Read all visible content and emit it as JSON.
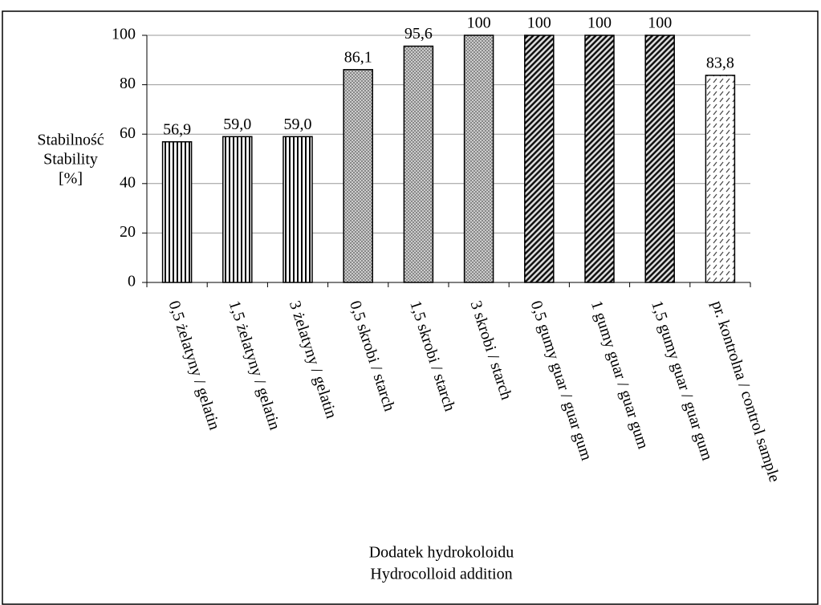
{
  "chart_data": {
    "type": "bar",
    "categories": [
      "0,5 żelatyny / gelatin",
      "1,5 żelatyny / gelatin",
      "3 żelatyny / gelatin",
      "0,5 skrobi / starch",
      "1,5 skrobi / starch",
      "3 skrobi / starch",
      "0,5 gumy guar / guar gum",
      "1 gumy guar / guar gum",
      "1,5 gumy guar / guar gum",
      "pr. kontrolna / control sample"
    ],
    "values": [
      56.9,
      59.0,
      59.0,
      86.1,
      95.6,
      100,
      100,
      100,
      100,
      83.8
    ],
    "value_labels": [
      "56,9",
      "59,0",
      "59,0",
      "86,1",
      "95,6",
      "100",
      "100",
      "100",
      "100",
      "83,8"
    ],
    "patterns": [
      "vertical-stripes",
      "vertical-stripes",
      "vertical-stripes",
      "crosshatch",
      "crosshatch",
      "crosshatch",
      "diagonal",
      "diagonal",
      "diagonal",
      "dashed-diagonal"
    ],
    "ylabel": [
      "Stabilność",
      "Stability",
      "[%]"
    ],
    "xlabel": [
      "Dodatek hydrokoloidu",
      "Hydrocolloid addition"
    ],
    "ylim": [
      0,
      100
    ],
    "yticks": [
      0,
      20,
      40,
      60,
      80,
      100
    ],
    "grid": true
  }
}
